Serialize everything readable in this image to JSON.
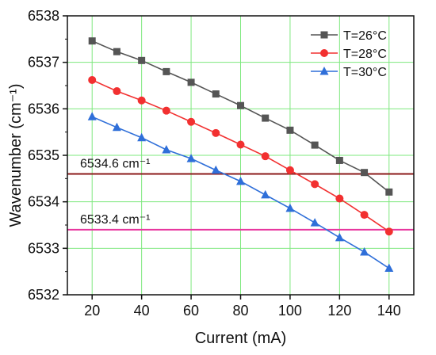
{
  "chart_data": {
    "type": "line",
    "xlabel": "Current (mA)",
    "ylabel": "Wavenumber (cm⁻¹)",
    "xlim": [
      10,
      150
    ],
    "ylim": [
      6532,
      6538
    ],
    "xticks": [
      20,
      40,
      60,
      80,
      100,
      120,
      140
    ],
    "yticks": [
      6532,
      6533,
      6534,
      6535,
      6536,
      6537,
      6538
    ],
    "grid": true,
    "legend_position": "top-right",
    "x": [
      20,
      30,
      40,
      50,
      60,
      70,
      80,
      90,
      100,
      110,
      120,
      130,
      140
    ],
    "series": [
      {
        "name": "T=26°C",
        "color": "#555555",
        "marker": "square",
        "values": [
          6537.46,
          6537.23,
          6537.04,
          6536.8,
          6536.57,
          6536.32,
          6536.07,
          6535.8,
          6535.54,
          6535.22,
          6534.89,
          6534.63,
          6534.21
        ]
      },
      {
        "name": "T=28°C",
        "color": "#f23030",
        "marker": "circle",
        "values": [
          6536.62,
          6536.38,
          6536.18,
          6535.96,
          6535.72,
          6535.48,
          6535.23,
          6534.98,
          6534.68,
          6534.38,
          6534.07,
          6533.72,
          6533.36
        ]
      },
      {
        "name": "T=30°C",
        "color": "#2f6fd9",
        "marker": "triangle",
        "values": [
          6535.83,
          6535.6,
          6535.38,
          6535.12,
          6534.93,
          6534.68,
          6534.44,
          6534.15,
          6533.86,
          6533.55,
          6533.23,
          6532.92,
          6532.57
        ]
      }
    ],
    "reference_lines": [
      {
        "value": 6534.6,
        "label": "6534.6 cm⁻¹",
        "color": "#8b1a1a"
      },
      {
        "value": 6533.4,
        "label": "6533.4 cm⁻¹",
        "color": "#e8359e"
      }
    ]
  }
}
